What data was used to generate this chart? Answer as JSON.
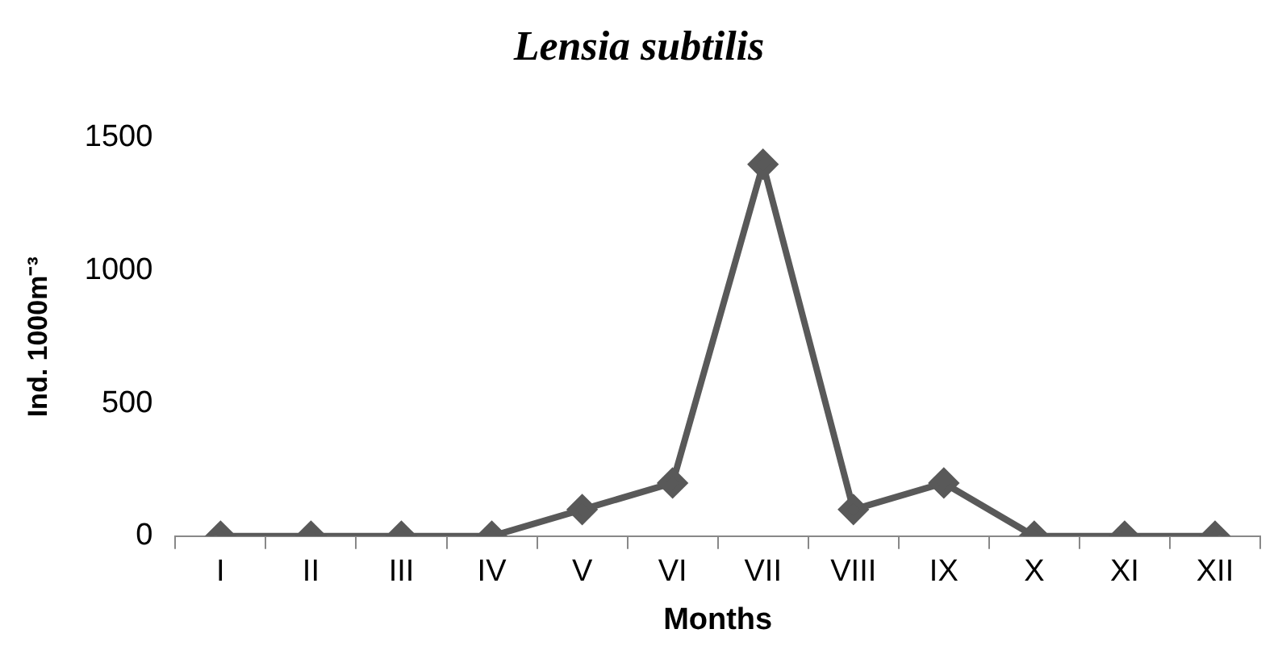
{
  "chart_data": {
    "type": "line",
    "title": "Lensia subtilis",
    "xlabel": "Months",
    "ylabel": "Ind. 1000m⁻³",
    "categories": [
      "I",
      "II",
      "III",
      "IV",
      "V",
      "VI",
      "VII",
      "VIII",
      "IX",
      "X",
      "XI",
      "XII"
    ],
    "series": [
      {
        "color": "#595959",
        "values": [
          0,
          0,
          0,
          0,
          100,
          200,
          1400,
          100,
          200,
          0,
          0,
          0
        ]
      }
    ],
    "ylim": [
      0,
      1500
    ],
    "yticks": [
      0,
      500,
      1000,
      1500
    ],
    "grid": false,
    "legend": false,
    "marker": "diamond",
    "line_style": "solid"
  }
}
